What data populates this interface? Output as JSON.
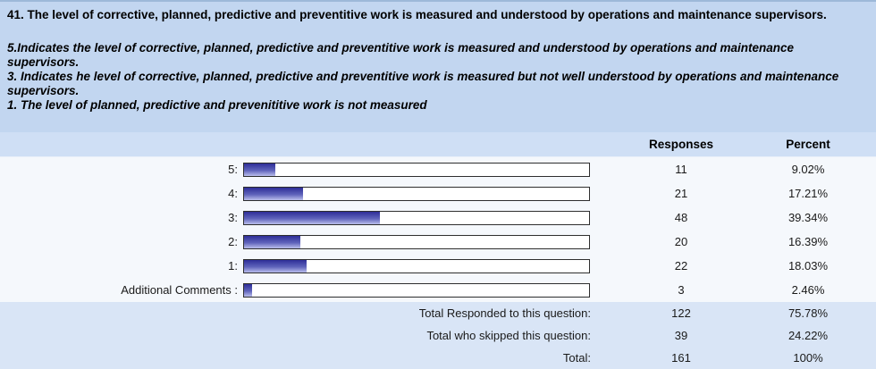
{
  "question": {
    "title": "41. The level of corrective, planned, predictive and preventitive work is measured and understood by operations and maintenance supervisors.",
    "descriptions": [
      "5.Indicates the level of corrective, planned, predictive and preventitive work is measured and understood by operations and maintenance supervisors.",
      "3. Indicates he level of corrective, planned, predictive and preventitive work is measured but not well understood by operations and maintenance supervisors.",
      "1. The level of planned, predictive and prevenititive work is not measured"
    ]
  },
  "table": {
    "columns": {
      "responses": "Responses",
      "percent": "Percent"
    },
    "rows": [
      {
        "label": "5:",
        "responses": "11",
        "percent": "9.02%",
        "bar_pct": 9.02
      },
      {
        "label": "4:",
        "responses": "21",
        "percent": "17.21%",
        "bar_pct": 17.21
      },
      {
        "label": "3:",
        "responses": "48",
        "percent": "39.34%",
        "bar_pct": 39.34
      },
      {
        "label": "2:",
        "responses": "20",
        "percent": "16.39%",
        "bar_pct": 16.39
      },
      {
        "label": "1:",
        "responses": "22",
        "percent": "18.03%",
        "bar_pct": 18.03
      },
      {
        "label": "Additional Comments :",
        "responses": "3",
        "percent": "2.46%",
        "bar_pct": 2.46
      }
    ],
    "summary": [
      {
        "label": "Total Responded to this question:",
        "responses": "122",
        "percent": "75.78%"
      },
      {
        "label": "Total who skipped this question:",
        "responses": "39",
        "percent": "24.22%"
      },
      {
        "label": "Total:",
        "responses": "161",
        "percent": "100%"
      }
    ]
  },
  "colors": {
    "header_bg": "#c2d6f0",
    "subheader_bg": "#cfdff5",
    "rows_bg": "#f5f8fc",
    "footer_bg": "#d9e5f6",
    "bar_border": "#2e2e2e",
    "bar_fill_top": "#2e2e97",
    "bar_fill_bottom": "#babeec"
  },
  "chart_data": {
    "type": "bar",
    "orientation": "horizontal",
    "title": "41. The level of corrective, planned, predictive and preventitive work is measured and understood by operations and maintenance supervisors.",
    "categories": [
      "5",
      "4",
      "3",
      "2",
      "1",
      "Additional Comments"
    ],
    "series": [
      {
        "name": "Responses",
        "values": [
          11,
          21,
          48,
          20,
          22,
          3
        ]
      },
      {
        "name": "Percent",
        "values": [
          9.02,
          17.21,
          39.34,
          16.39,
          18.03,
          2.46
        ]
      }
    ],
    "totals": {
      "responded": 122,
      "responded_percent": 75.78,
      "skipped": 39,
      "skipped_percent": 24.22,
      "total": 161,
      "total_percent": 100
    },
    "xlim": [
      0,
      100
    ],
    "grid": false,
    "legend": false
  }
}
